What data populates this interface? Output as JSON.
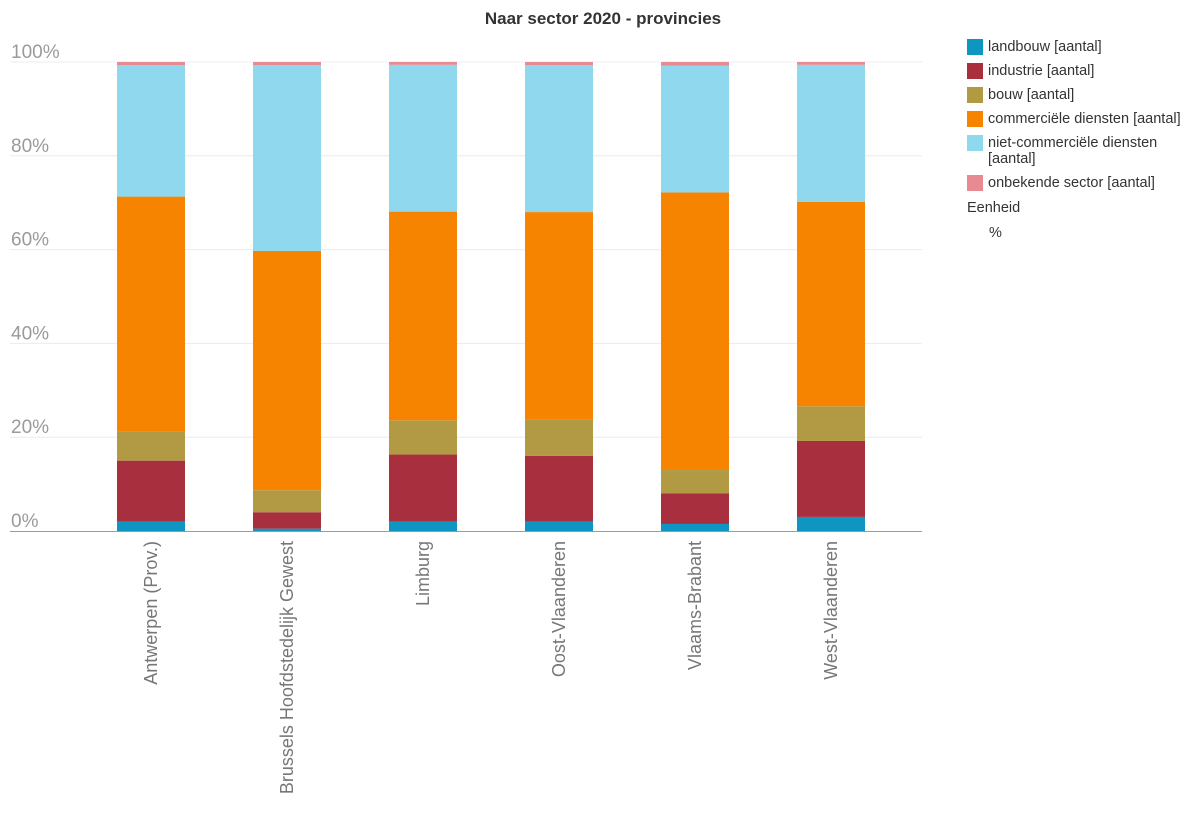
{
  "chart_data": {
    "type": "bar",
    "stacked": true,
    "title": "Naar sector 2020 - provincies",
    "categories": [
      "Antwerpen (Prov.)",
      "Brussels Hoofdstedelijk Gewest",
      "Limburg",
      "Oost-Vlaanderen",
      "Vlaams-Brabant",
      "West-Vlaanderen"
    ],
    "series": [
      {
        "name": "landbouw [aantal]",
        "color": "#0f95c2",
        "values": [
          2.0,
          0.5,
          2.0,
          2.0,
          1.5,
          3.0
        ]
      },
      {
        "name": "industrie [aantal]",
        "color": "#a82f3e",
        "values": [
          13.0,
          3.5,
          14.3,
          14.0,
          6.5,
          16.2
        ]
      },
      {
        "name": "bouw [aantal]",
        "color": "#b19a43",
        "values": [
          6.3,
          4.7,
          7.3,
          7.7,
          5.0,
          7.4
        ]
      },
      {
        "name": "commerciële diensten [aantal]",
        "color": "#f68400",
        "values": [
          50.0,
          51.0,
          44.5,
          44.3,
          59.2,
          43.6
        ]
      },
      {
        "name": "niet-commerciële diensten [aantal]",
        "color": "#8fd8ee",
        "values": [
          28.0,
          39.6,
          31.3,
          31.3,
          27.0,
          29.2
        ]
      },
      {
        "name": "onbekende sector [aantal]",
        "color": "#e78a92",
        "values": [
          0.7,
          0.7,
          0.6,
          0.7,
          0.8,
          0.6
        ]
      }
    ],
    "ylim": [
      0,
      100
    ],
    "yticks": [
      "0%",
      "20%",
      "40%",
      "60%",
      "80%",
      "100%"
    ],
    "grid": true,
    "legend_position": "right"
  },
  "legend": {
    "unit_title": "Eenheid",
    "unit_value": "%"
  }
}
